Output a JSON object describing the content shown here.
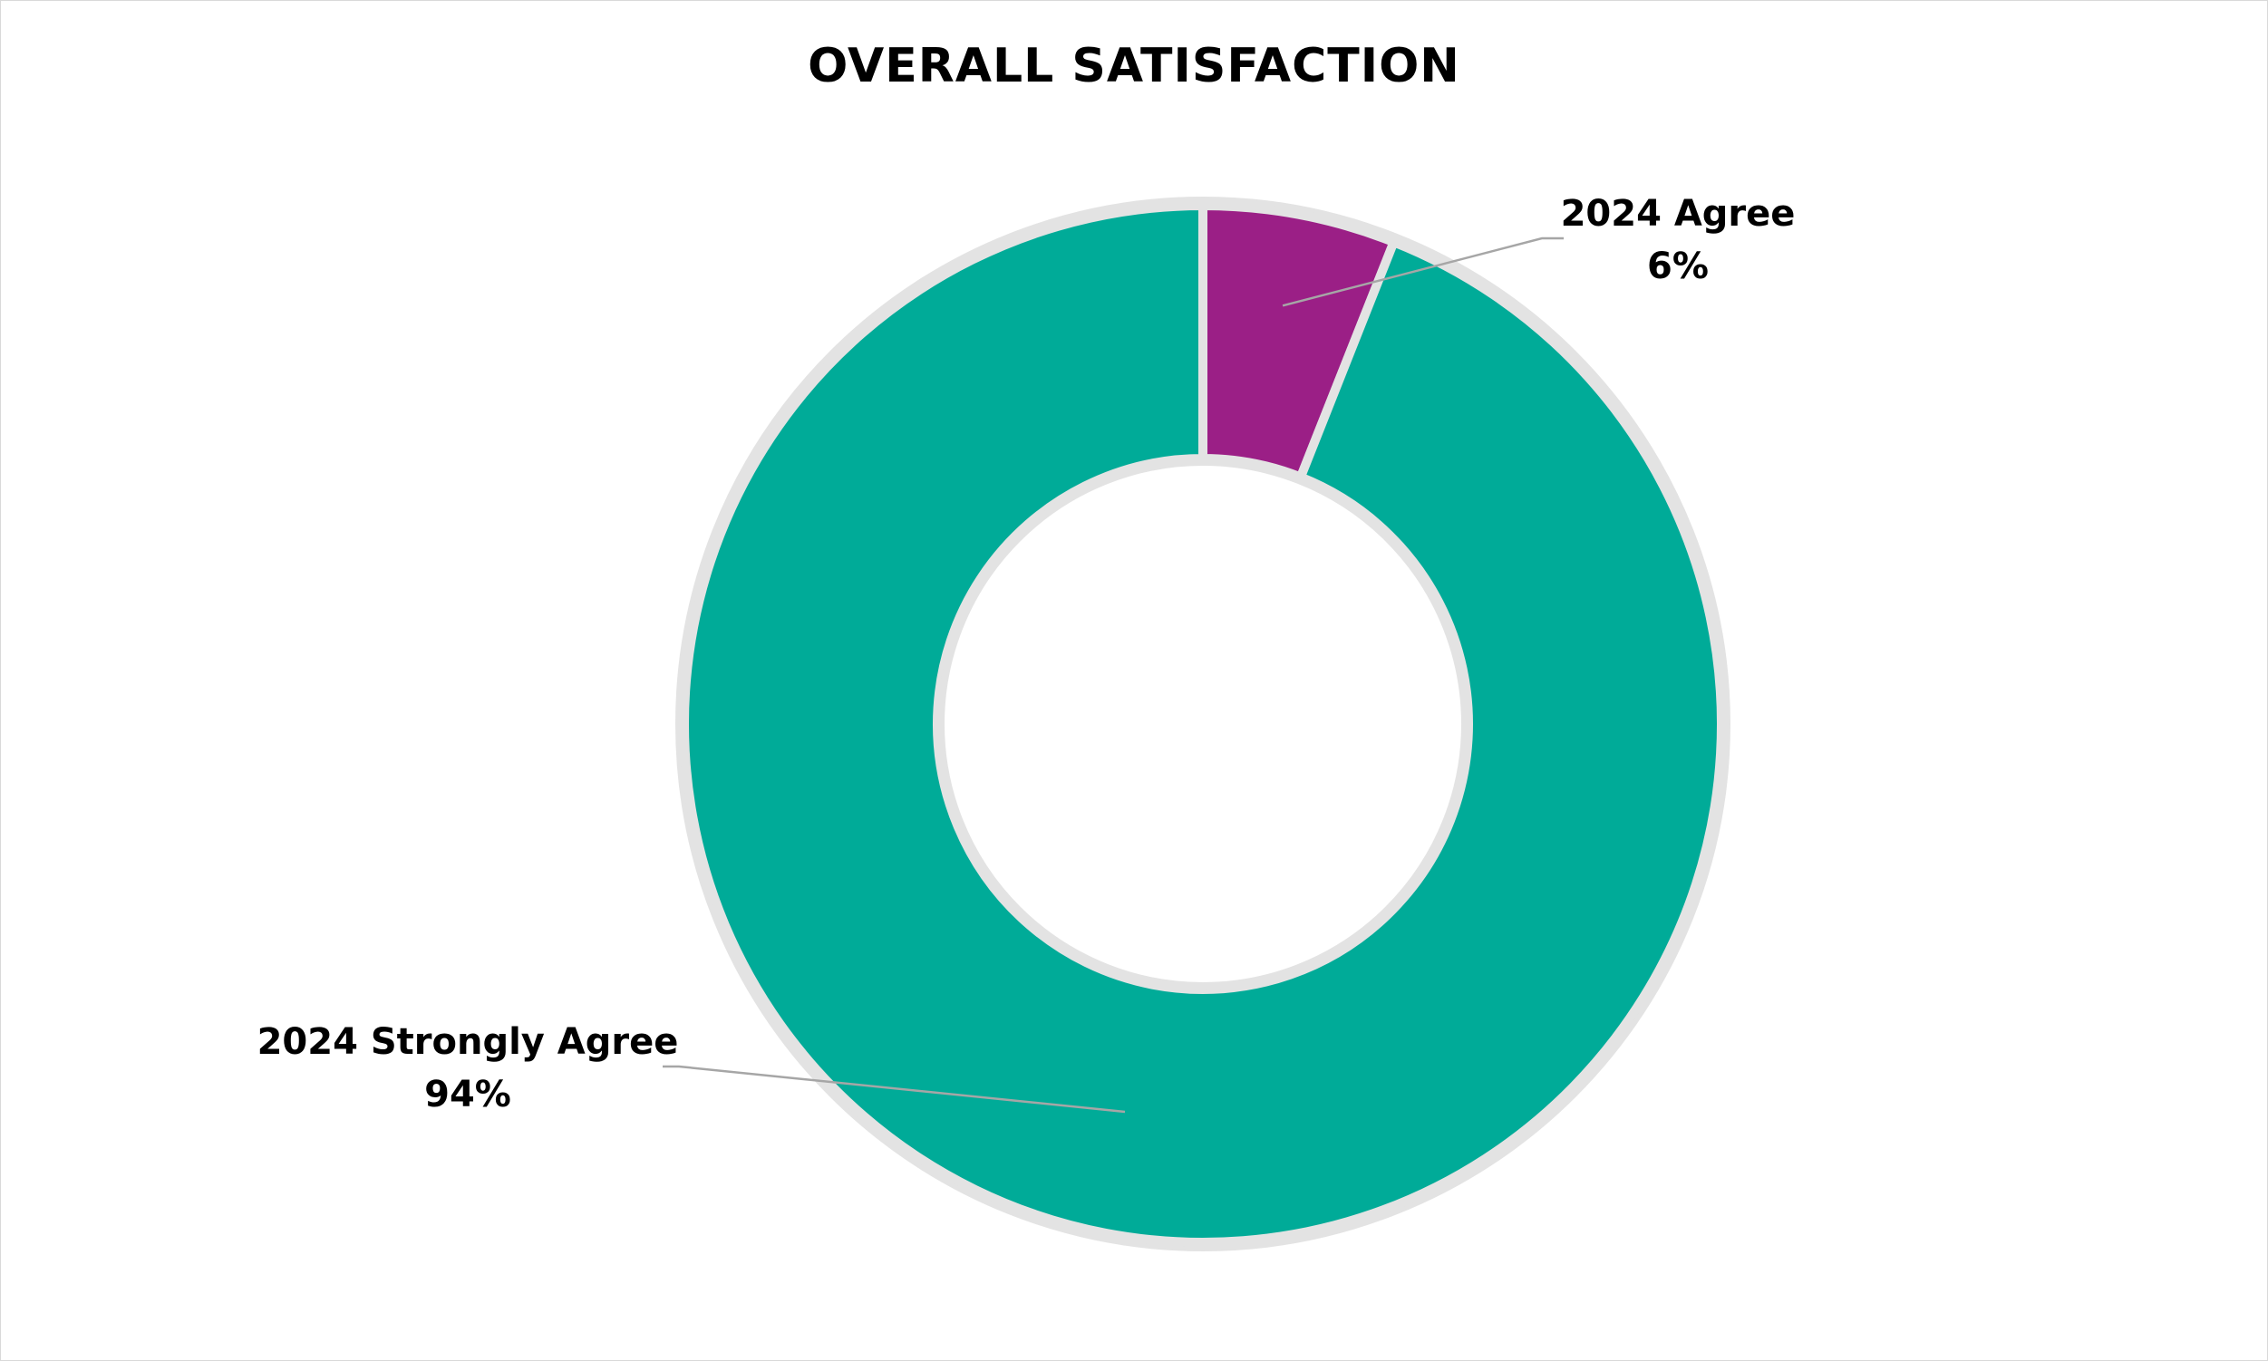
{
  "chart_data": {
    "type": "pie",
    "subtype": "donut",
    "title": "OVERALL SATISFACTION",
    "categories": [
      "2024 Agree",
      "2024 Strongly Agree"
    ],
    "values": [
      6,
      94
    ],
    "unit": "%",
    "value_labels": [
      "6%",
      "94%"
    ],
    "colors": [
      "#9B1F86",
      "#00AB98"
    ],
    "start_angle_deg": 0,
    "direction": "clockwise",
    "legend": "none",
    "data_labels": "outside-with-leader-lines"
  }
}
